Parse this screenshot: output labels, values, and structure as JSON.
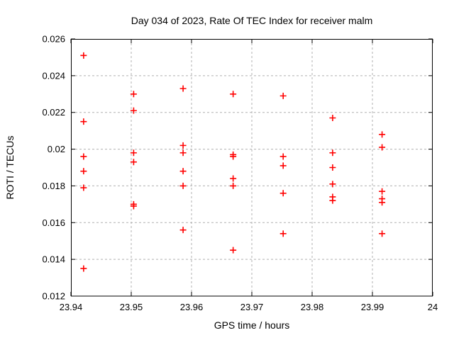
{
  "window": {
    "background": "#ffffff"
  },
  "chart_data": {
    "type": "scatter",
    "title": "Day 034 of 2023, Rate Of TEC Index for receiver malm",
    "xlabel": "GPS time / hours",
    "ylabel": "ROTI / TECUs",
    "xlim": [
      23.94,
      24
    ],
    "ylim": [
      0.012,
      0.026
    ],
    "xtick_values": [
      23.94,
      23.95,
      23.96,
      23.97,
      23.98,
      23.99,
      24
    ],
    "xtick_labels": [
      "23.94",
      "23.95",
      "23.96",
      "23.97",
      "23.98",
      "23.99",
      "24"
    ],
    "ytick_values": [
      0.012,
      0.014,
      0.016,
      0.018,
      0.02,
      0.022,
      0.024,
      0.026
    ],
    "ytick_labels": [
      "0.012",
      "0.014",
      "0.016",
      "0.018",
      "0.02",
      "0.022",
      "0.024",
      "0.026"
    ],
    "grid": true,
    "legend": "none",
    "marker": "plus",
    "colors": {
      "marker": "#ff0000",
      "grid": "#b0b0b0",
      "axis": "#000000",
      "text": "#000000"
    },
    "series": [
      {
        "name": "ROTI",
        "points": [
          [
            23.9421,
            0.0251
          ],
          [
            23.9421,
            0.0215
          ],
          [
            23.9421,
            0.0196
          ],
          [
            23.9421,
            0.0188
          ],
          [
            23.9421,
            0.0179
          ],
          [
            23.9421,
            0.0135
          ],
          [
            23.9504,
            0.023
          ],
          [
            23.9504,
            0.0221
          ],
          [
            23.9504,
            0.0198
          ],
          [
            23.9504,
            0.0193
          ],
          [
            23.9504,
            0.017
          ],
          [
            23.9504,
            0.0169
          ],
          [
            23.9586,
            0.0233
          ],
          [
            23.9586,
            0.0202
          ],
          [
            23.9586,
            0.0198
          ],
          [
            23.9586,
            0.0188
          ],
          [
            23.9586,
            0.018
          ],
          [
            23.9586,
            0.0156
          ],
          [
            23.9669,
            0.023
          ],
          [
            23.9669,
            0.0197
          ],
          [
            23.9669,
            0.0196
          ],
          [
            23.9669,
            0.0184
          ],
          [
            23.9669,
            0.018
          ],
          [
            23.9669,
            0.0145
          ],
          [
            23.9752,
            0.0229
          ],
          [
            23.9752,
            0.0196
          ],
          [
            23.9752,
            0.0191
          ],
          [
            23.9752,
            0.0176
          ],
          [
            23.9752,
            0.0154
          ],
          [
            23.9834,
            0.0217
          ],
          [
            23.9834,
            0.0198
          ],
          [
            23.9834,
            0.019
          ],
          [
            23.9834,
            0.0181
          ],
          [
            23.9834,
            0.0174
          ],
          [
            23.9834,
            0.0172
          ],
          [
            23.9916,
            0.0208
          ],
          [
            23.9916,
            0.0201
          ],
          [
            23.9916,
            0.0177
          ],
          [
            23.9916,
            0.0173
          ],
          [
            23.9916,
            0.0171
          ],
          [
            23.9916,
            0.0154
          ]
        ]
      }
    ]
  }
}
